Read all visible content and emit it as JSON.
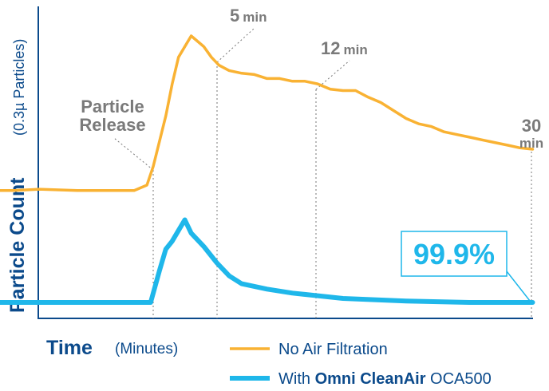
{
  "chart_data": {
    "type": "line",
    "ylabel": "Particle Count",
    "ylabel_sub": "(0.3µ Particles)",
    "xlabel": "Time",
    "xlabel_sub": "(Minutes)",
    "xlim": [
      -15,
      32
    ],
    "ylim": [
      0,
      100
    ],
    "series": [
      {
        "name": "No Air Filtration",
        "color": "#f9b233",
        "x": [
          -15,
          -11,
          -9,
          -6,
          -4,
          -1.5,
          -0.5,
          0,
          1,
          1.5,
          2,
          3,
          4,
          4.6,
          5.2,
          6,
          7,
          8,
          9,
          10,
          11,
          12,
          13,
          14,
          15,
          16,
          17,
          18,
          19,
          20,
          21,
          22,
          23,
          24,
          25,
          26,
          27,
          28,
          29,
          30
        ],
        "values": [
          42,
          42,
          42.5,
          42,
          42,
          42,
          44,
          51,
          70,
          82,
          92,
          100,
          96,
          92,
          89,
          87,
          86,
          85.5,
          84,
          84,
          83,
          83,
          82,
          80,
          79.5,
          79.5,
          77,
          75,
          72,
          69,
          67,
          66,
          64,
          63,
          62,
          61,
          60,
          59,
          58,
          57.5
        ]
      },
      {
        "name": "With Omni CleanAir OCA500",
        "color": "#1fb7ea",
        "x": [
          -15,
          -10,
          -5,
          -1,
          -0.2,
          0.5,
          1,
          1.5,
          2,
          2.5,
          3,
          4,
          5,
          6,
          7,
          9,
          11,
          13,
          15,
          20,
          25,
          30
        ],
        "values": [
          0,
          0,
          0,
          0,
          0,
          12,
          20,
          23,
          27,
          31,
          26,
          21,
          15,
          10,
          7,
          5,
          3.5,
          2.5,
          1.5,
          0.5,
          0,
          0
        ]
      }
    ],
    "annotations": [
      {
        "label_1": "Particle",
        "label_2": "Release",
        "x": 0
      },
      {
        "label_1": "5",
        "unit": "min",
        "x": 5
      },
      {
        "label_1": "12",
        "unit": "min",
        "x": 12
      },
      {
        "label_1": "30",
        "unit": "min",
        "x": 30
      }
    ],
    "callout": "99.9%",
    "legend_position": "bottom-right",
    "grid": false
  },
  "legend": {
    "no_filter": "No Air Filtration",
    "with_prefix": "With ",
    "with_brand": "Omni CleanAir",
    "with_model": " OCA500"
  }
}
